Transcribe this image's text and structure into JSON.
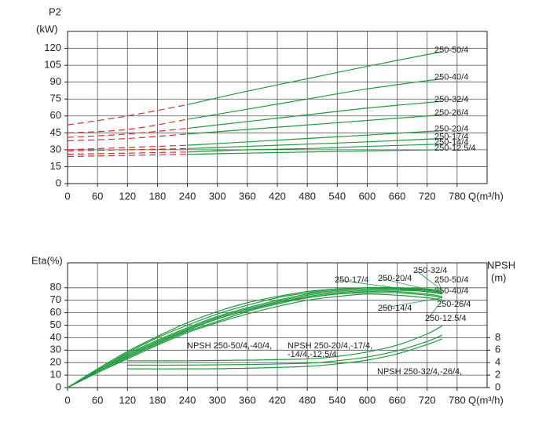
{
  "chart_data": [
    {
      "type": "line",
      "y_label": "P2",
      "y_unit": "(kW)",
      "x_label": "Q(m³/h)",
      "xlim": [
        0,
        840
      ],
      "xticks": [
        0,
        60,
        120,
        180,
        240,
        300,
        360,
        420,
        480,
        540,
        600,
        660,
        720,
        780
      ],
      "ylim": [
        0,
        135
      ],
      "yticks": [
        0,
        15,
        30,
        45,
        60,
        75,
        90,
        105,
        120
      ],
      "grid": true,
      "split_x": 240,
      "low_flow_color": "#d9302c",
      "x": [
        0,
        120,
        240,
        360,
        480,
        600,
        750
      ],
      "series": [
        {
          "name": "250-50/4",
          "color": "#1e9b3c",
          "values": [
            52,
            60,
            70,
            82,
            93,
            104,
            117
          ]
        },
        {
          "name": "250-40/4",
          "color": "#1e9b3c",
          "values": [
            45,
            48,
            57,
            66,
            75,
            84,
            93
          ]
        },
        {
          "name": "250-32/4",
          "color": "#1e9b3c",
          "values": [
            41,
            44,
            49,
            55,
            61,
            67,
            73
          ]
        },
        {
          "name": "250-26/4",
          "color": "#1e9b3c",
          "values": [
            38,
            40,
            44,
            48,
            52,
            56,
            61
          ]
        },
        {
          "name": "250-20/4",
          "color": "#1e9b3c",
          "values": [
            30,
            32,
            34,
            37,
            40,
            43,
            47
          ]
        },
        {
          "name": "250-17/4",
          "color": "#1e9b3c",
          "values": [
            29,
            30,
            31,
            33,
            35,
            37,
            40
          ]
        },
        {
          "name": "250-14/4",
          "color": "#1e9b3c",
          "values": [
            26,
            27,
            28,
            30,
            31,
            33,
            35
          ]
        },
        {
          "name": "250-12.5/4",
          "color": "#1e9b3c",
          "values": [
            24,
            25,
            26,
            27,
            28,
            29,
            30
          ]
        }
      ]
    },
    {
      "type": "line",
      "y_label": "Eta(%)",
      "y2_label": "NPSH",
      "y2_unit": "(m)",
      "x_label": "Q(m³/h)",
      "xlim": [
        0,
        840
      ],
      "xticks": [
        0,
        60,
        120,
        180,
        240,
        300,
        360,
        420,
        480,
        540,
        600,
        660,
        720,
        780
      ],
      "ylim": [
        0,
        100
      ],
      "yticks": [
        0,
        10,
        20,
        30,
        40,
        50,
        60,
        70,
        80
      ],
      "grid": true,
      "y2lim": [
        0,
        20
      ],
      "y2ticks": [
        0,
        2,
        4,
        6,
        8
      ],
      "x": [
        0,
        60,
        120,
        180,
        240,
        300,
        360,
        420,
        480,
        540,
        600,
        660,
        720,
        750
      ],
      "series": [
        {
          "name": "250-50/4",
          "color": "#1e9b3c",
          "values": [
            0,
            13,
            26,
            37,
            47,
            56,
            63,
            69,
            74,
            77,
            79,
            79,
            78,
            77
          ]
        },
        {
          "name": "250-40/4",
          "color": "#1e9b3c",
          "values": [
            0,
            13,
            25,
            36,
            46,
            55,
            62,
            68,
            73,
            76,
            78,
            78,
            77,
            75
          ]
        },
        {
          "name": "250-32/4",
          "color": "#1e9b3c",
          "values": [
            0,
            14,
            27,
            38,
            48,
            57,
            64,
            70,
            75,
            78,
            80,
            80,
            79,
            78
          ]
        },
        {
          "name": "250-26/4",
          "color": "#1e9b3c",
          "values": [
            0,
            12,
            24,
            35,
            45,
            53,
            61,
            67,
            72,
            75,
            77,
            77,
            75,
            73
          ]
        },
        {
          "name": "250-20/4",
          "color": "#1e9b3c",
          "values": [
            0,
            14,
            28,
            40,
            50,
            59,
            66,
            72,
            76,
            79,
            80,
            80,
            78,
            76
          ]
        },
        {
          "name": "250-17/4",
          "color": "#1e9b3c",
          "values": [
            0,
            15,
            29,
            41,
            52,
            61,
            68,
            73,
            77,
            79,
            80,
            79,
            77,
            75
          ]
        },
        {
          "name": "250-14/4",
          "color": "#1e9b3c",
          "values": [
            0,
            13,
            25,
            36,
            46,
            55,
            62,
            68,
            72,
            75,
            76,
            76,
            74,
            72
          ]
        },
        {
          "name": "250-12.5/4",
          "color": "#1e9b3c",
          "values": [
            0,
            12,
            23,
            34,
            44,
            52,
            59,
            65,
            70,
            73,
            75,
            74,
            72,
            70
          ]
        },
        {
          "name_lines": [
            "NPSH 250-50/4,-40/4,"
          ],
          "axis": "y2",
          "color": "#1e9b3c",
          "x": [
            120,
            240,
            360,
            480,
            540,
            600,
            660,
            720,
            750
          ],
          "values": [
            4.3,
            4.3,
            4.4,
            4.6,
            5.0,
            5.7,
            6.8,
            8.6,
            9.9
          ]
        },
        {
          "name_lines": [
            "NPSH 250-20/4,-17/4,",
            "-14/4,-12.5/4"
          ],
          "axis": "y2",
          "color": "#1e9b3c",
          "x": [
            120,
            240,
            360,
            480,
            540,
            600,
            660,
            720,
            750
          ],
          "values": [
            3.6,
            3.6,
            3.7,
            3.9,
            4.3,
            4.9,
            5.9,
            7.4,
            8.4
          ]
        },
        {
          "name_lines": [
            "NPSH 250-32/4,-26/4,"
          ],
          "axis": "y2",
          "color": "#1e9b3c",
          "x": [
            120,
            240,
            360,
            480,
            540,
            600,
            660,
            720,
            750
          ],
          "values": [
            3.0,
            3.0,
            3.1,
            3.4,
            3.8,
            4.4,
            5.4,
            6.9,
            7.8
          ]
        }
      ]
    }
  ]
}
